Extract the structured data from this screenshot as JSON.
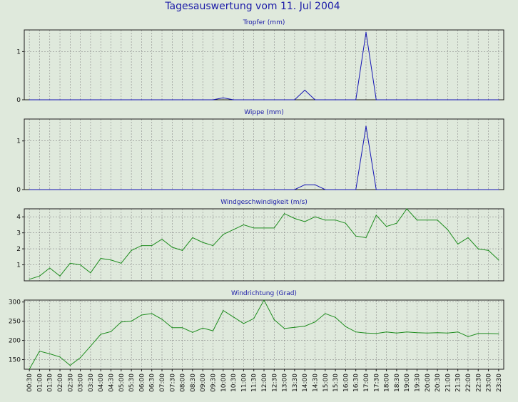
{
  "page_title": "Tagesauswertung vom 11. Jul 2004",
  "colors": {
    "background": "#dfe9dc",
    "plot_bg": "#dfe9dc",
    "title_blue": "#1a1aa8",
    "precip_line": "#1414b4",
    "wind_line": "#1e8c1e",
    "grid": "#8a8a8a",
    "frame": "#1c1c1c",
    "tick_text": "#111111"
  },
  "x_tick_labels": [
    "00:30",
    "01:00",
    "01:30",
    "02:00",
    "02:30",
    "03:00",
    "03:30",
    "04:00",
    "04:30",
    "05:00",
    "05:30",
    "06:00",
    "06:30",
    "07:00",
    "07:30",
    "08:00",
    "08:30",
    "09:00",
    "09:30",
    "10:00",
    "10:30",
    "11:00",
    "11:30",
    "12:00",
    "12:30",
    "13:00",
    "13:30",
    "14:00",
    "14:30",
    "15:00",
    "15:30",
    "16:00",
    "16:30",
    "17:00",
    "17:30",
    "18:00",
    "18:30",
    "19:00",
    "19:30",
    "20:00",
    "20:30",
    "21:00",
    "21:30",
    "22:00",
    "22:30",
    "23:00",
    "23:30"
  ],
  "chart_data": [
    {
      "type": "line",
      "title": "Tropfer (mm)",
      "x": [
        "00:30",
        "01:00",
        "01:30",
        "02:00",
        "02:30",
        "03:00",
        "03:30",
        "04:00",
        "04:30",
        "05:00",
        "05:30",
        "06:00",
        "06:30",
        "07:00",
        "07:30",
        "08:00",
        "08:30",
        "09:00",
        "09:30",
        "10:00",
        "10:30",
        "11:00",
        "11:30",
        "12:00",
        "12:30",
        "13:00",
        "13:30",
        "14:00",
        "14:30",
        "15:00",
        "15:30",
        "16:00",
        "16:30",
        "17:00",
        "17:30",
        "18:00",
        "18:30",
        "19:00",
        "19:30",
        "20:00",
        "20:30",
        "21:00",
        "21:30",
        "22:00",
        "22:30",
        "23:00",
        "23:30"
      ],
      "values": [
        0,
        0,
        0,
        0,
        0,
        0,
        0,
        0,
        0,
        0,
        0,
        0,
        0,
        0,
        0,
        0,
        0,
        0,
        0,
        0.04,
        0,
        0,
        0,
        0,
        0,
        0,
        0,
        0.2,
        0,
        0,
        0,
        0,
        0,
        1.4,
        0,
        0,
        0,
        0,
        0,
        0,
        0,
        0,
        0,
        0,
        0,
        0,
        0
      ],
      "ylim": [
        0,
        1.45
      ],
      "yticks": [
        0,
        1
      ],
      "grid": true
    },
    {
      "type": "line",
      "title": "Wippe (mm)",
      "x": [
        "00:30",
        "01:00",
        "01:30",
        "02:00",
        "02:30",
        "03:00",
        "03:30",
        "04:00",
        "04:30",
        "05:00",
        "05:30",
        "06:00",
        "06:30",
        "07:00",
        "07:30",
        "08:00",
        "08:30",
        "09:00",
        "09:30",
        "10:00",
        "10:30",
        "11:00",
        "11:30",
        "12:00",
        "12:30",
        "13:00",
        "13:30",
        "14:00",
        "14:30",
        "15:00",
        "15:30",
        "16:00",
        "16:30",
        "17:00",
        "17:30",
        "18:00",
        "18:30",
        "19:00",
        "19:30",
        "20:00",
        "20:30",
        "21:00",
        "21:30",
        "22:00",
        "22:30",
        "23:00",
        "23:30"
      ],
      "values": [
        0,
        0,
        0,
        0,
        0,
        0,
        0,
        0,
        0,
        0,
        0,
        0,
        0,
        0,
        0,
        0,
        0,
        0,
        0,
        0,
        0,
        0,
        0,
        0,
        0,
        0,
        0,
        0.1,
        0.1,
        0,
        0,
        0,
        0,
        1.3,
        0,
        0,
        0,
        0,
        0,
        0,
        0,
        0,
        0,
        0,
        0,
        0,
        0
      ],
      "ylim": [
        0,
        1.45
      ],
      "yticks": [
        0,
        1
      ],
      "grid": true
    },
    {
      "type": "line",
      "title": "Windgeschwindigkeit (m/s)",
      "x": [
        "00:30",
        "01:00",
        "01:30",
        "02:00",
        "02:30",
        "03:00",
        "03:30",
        "04:00",
        "04:30",
        "05:00",
        "05:30",
        "06:00",
        "06:30",
        "07:00",
        "07:30",
        "08:00",
        "08:30",
        "09:00",
        "09:30",
        "10:00",
        "10:30",
        "11:00",
        "11:30",
        "12:00",
        "12:30",
        "13:00",
        "13:30",
        "14:00",
        "14:30",
        "15:00",
        "15:30",
        "16:00",
        "16:30",
        "17:00",
        "17:30",
        "18:00",
        "18:30",
        "19:00",
        "19:30",
        "20:00",
        "20:30",
        "21:00",
        "21:30",
        "22:00",
        "22:30",
        "23:00",
        "23:30"
      ],
      "values": [
        0.1,
        0.3,
        0.8,
        0.3,
        1.1,
        1.0,
        0.5,
        1.4,
        1.3,
        1.1,
        1.9,
        2.2,
        2.2,
        2.6,
        2.1,
        1.9,
        2.7,
        2.4,
        2.2,
        2.9,
        3.2,
        3.5,
        3.3,
        3.3,
        3.3,
        4.2,
        3.9,
        3.7,
        4.0,
        3.8,
        3.8,
        3.6,
        2.8,
        2.7,
        4.1,
        3.4,
        3.6,
        4.5,
        3.8,
        3.8,
        3.8,
        3.2,
        2.3,
        2.7,
        2.0,
        1.9,
        1.3
      ],
      "ylim": [
        0,
        4.5
      ],
      "yticks": [
        1,
        2,
        3,
        4
      ],
      "grid": true
    },
    {
      "type": "line",
      "title": "Windrichtung (Grad)",
      "x": [
        "00:30",
        "01:00",
        "01:30",
        "02:00",
        "02:30",
        "03:00",
        "03:30",
        "04:00",
        "04:30",
        "05:00",
        "05:30",
        "06:00",
        "06:30",
        "07:00",
        "07:30",
        "08:00",
        "08:30",
        "09:00",
        "09:30",
        "10:00",
        "10:30",
        "11:00",
        "11:30",
        "12:00",
        "12:30",
        "13:00",
        "13:30",
        "14:00",
        "14:30",
        "15:00",
        "15:30",
        "16:00",
        "16:30",
        "17:00",
        "17:30",
        "18:00",
        "18:30",
        "19:00",
        "19:30",
        "20:00",
        "20:30",
        "21:00",
        "21:30",
        "22:00",
        "22:30",
        "23:00",
        "23:30"
      ],
      "values": [
        125,
        172,
        165,
        157,
        135,
        155,
        185,
        216,
        223,
        248,
        250,
        266,
        270,
        255,
        233,
        233,
        221,
        232,
        225,
        278,
        261,
        244,
        257,
        305,
        254,
        231,
        234,
        237,
        248,
        270,
        260,
        236,
        222,
        219,
        218,
        222,
        219,
        222,
        220,
        219,
        220,
        219,
        222,
        210,
        218,
        218,
        217
      ],
      "ylim": [
        125,
        305
      ],
      "yticks": [
        150,
        200,
        250,
        300
      ],
      "grid": true
    }
  ]
}
